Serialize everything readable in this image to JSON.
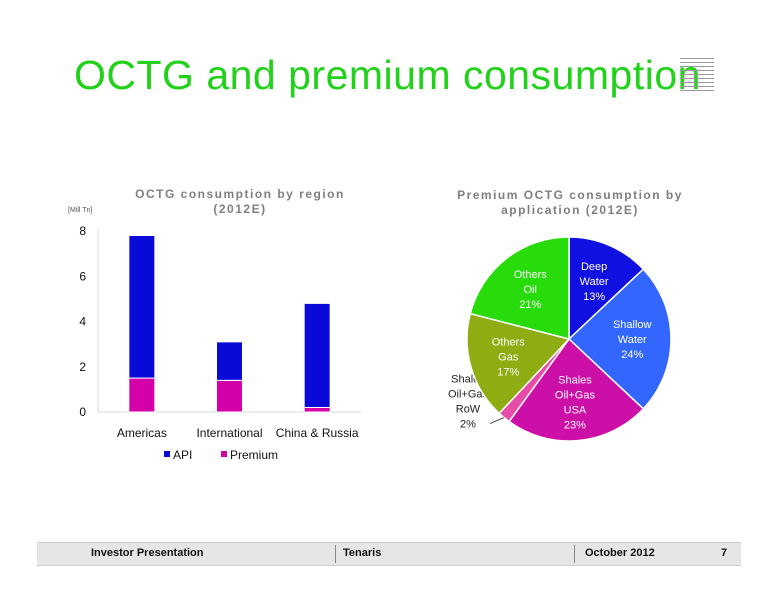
{
  "slide": {
    "title": "OCTG and premium consumption"
  },
  "footer": {
    "left": "Investor Presentation",
    "center": "Tenaris",
    "date": "October 2012",
    "page": "7"
  },
  "chart_data": [
    {
      "type": "bar",
      "stacked": true,
      "title": "OCTG consumption by region (2012E)",
      "unit_label": "[Mill Tn]",
      "categories": [
        "Americas",
        "International",
        "China & Russia"
      ],
      "series": [
        {
          "name": "Premium",
          "color": "#d400a8",
          "values": [
            1.5,
            1.4,
            0.2
          ]
        },
        {
          "name": "API",
          "color": "#0a0ad8",
          "values": [
            6.3,
            1.7,
            4.6
          ]
        }
      ],
      "legend_order": [
        "API",
        "Premium"
      ],
      "legend_position": "bottom",
      "ylim": [
        0,
        8
      ],
      "yticks": [
        0,
        2,
        4,
        6,
        8
      ],
      "grid": false
    },
    {
      "type": "pie",
      "title": "Premium OCTG consumption by application (2012E)",
      "slices": [
        {
          "label_lines": [
            "Deep",
            "Water",
            "13%"
          ],
          "value": 13,
          "color": "#1010e0",
          "text_color": "#ffffff"
        },
        {
          "label_lines": [
            "Shallow",
            "Water",
            "24%"
          ],
          "value": 24,
          "color": "#3366ff",
          "text_color": "#ffffff"
        },
        {
          "label_lines": [
            "Shales",
            "Oil+Gas",
            "USA",
            "23%"
          ],
          "value": 23,
          "color": "#cc0fa6",
          "text_color": "#ffffff"
        },
        {
          "label_lines": [
            "Shales",
            "Oil+Gas",
            "RoW",
            "2%"
          ],
          "value": 2,
          "color": "#e64ca8",
          "text_color": "#222222",
          "outside": true
        },
        {
          "label_lines": [
            "Others",
            "Gas",
            "17%"
          ],
          "value": 17,
          "color": "#8fad12",
          "text_color": "#ffffff"
        },
        {
          "label_lines": [
            "Others",
            "Oil",
            "21%"
          ],
          "value": 21,
          "color": "#28dc0c",
          "text_color": "#ffffff"
        }
      ],
      "grid": false
    }
  ]
}
